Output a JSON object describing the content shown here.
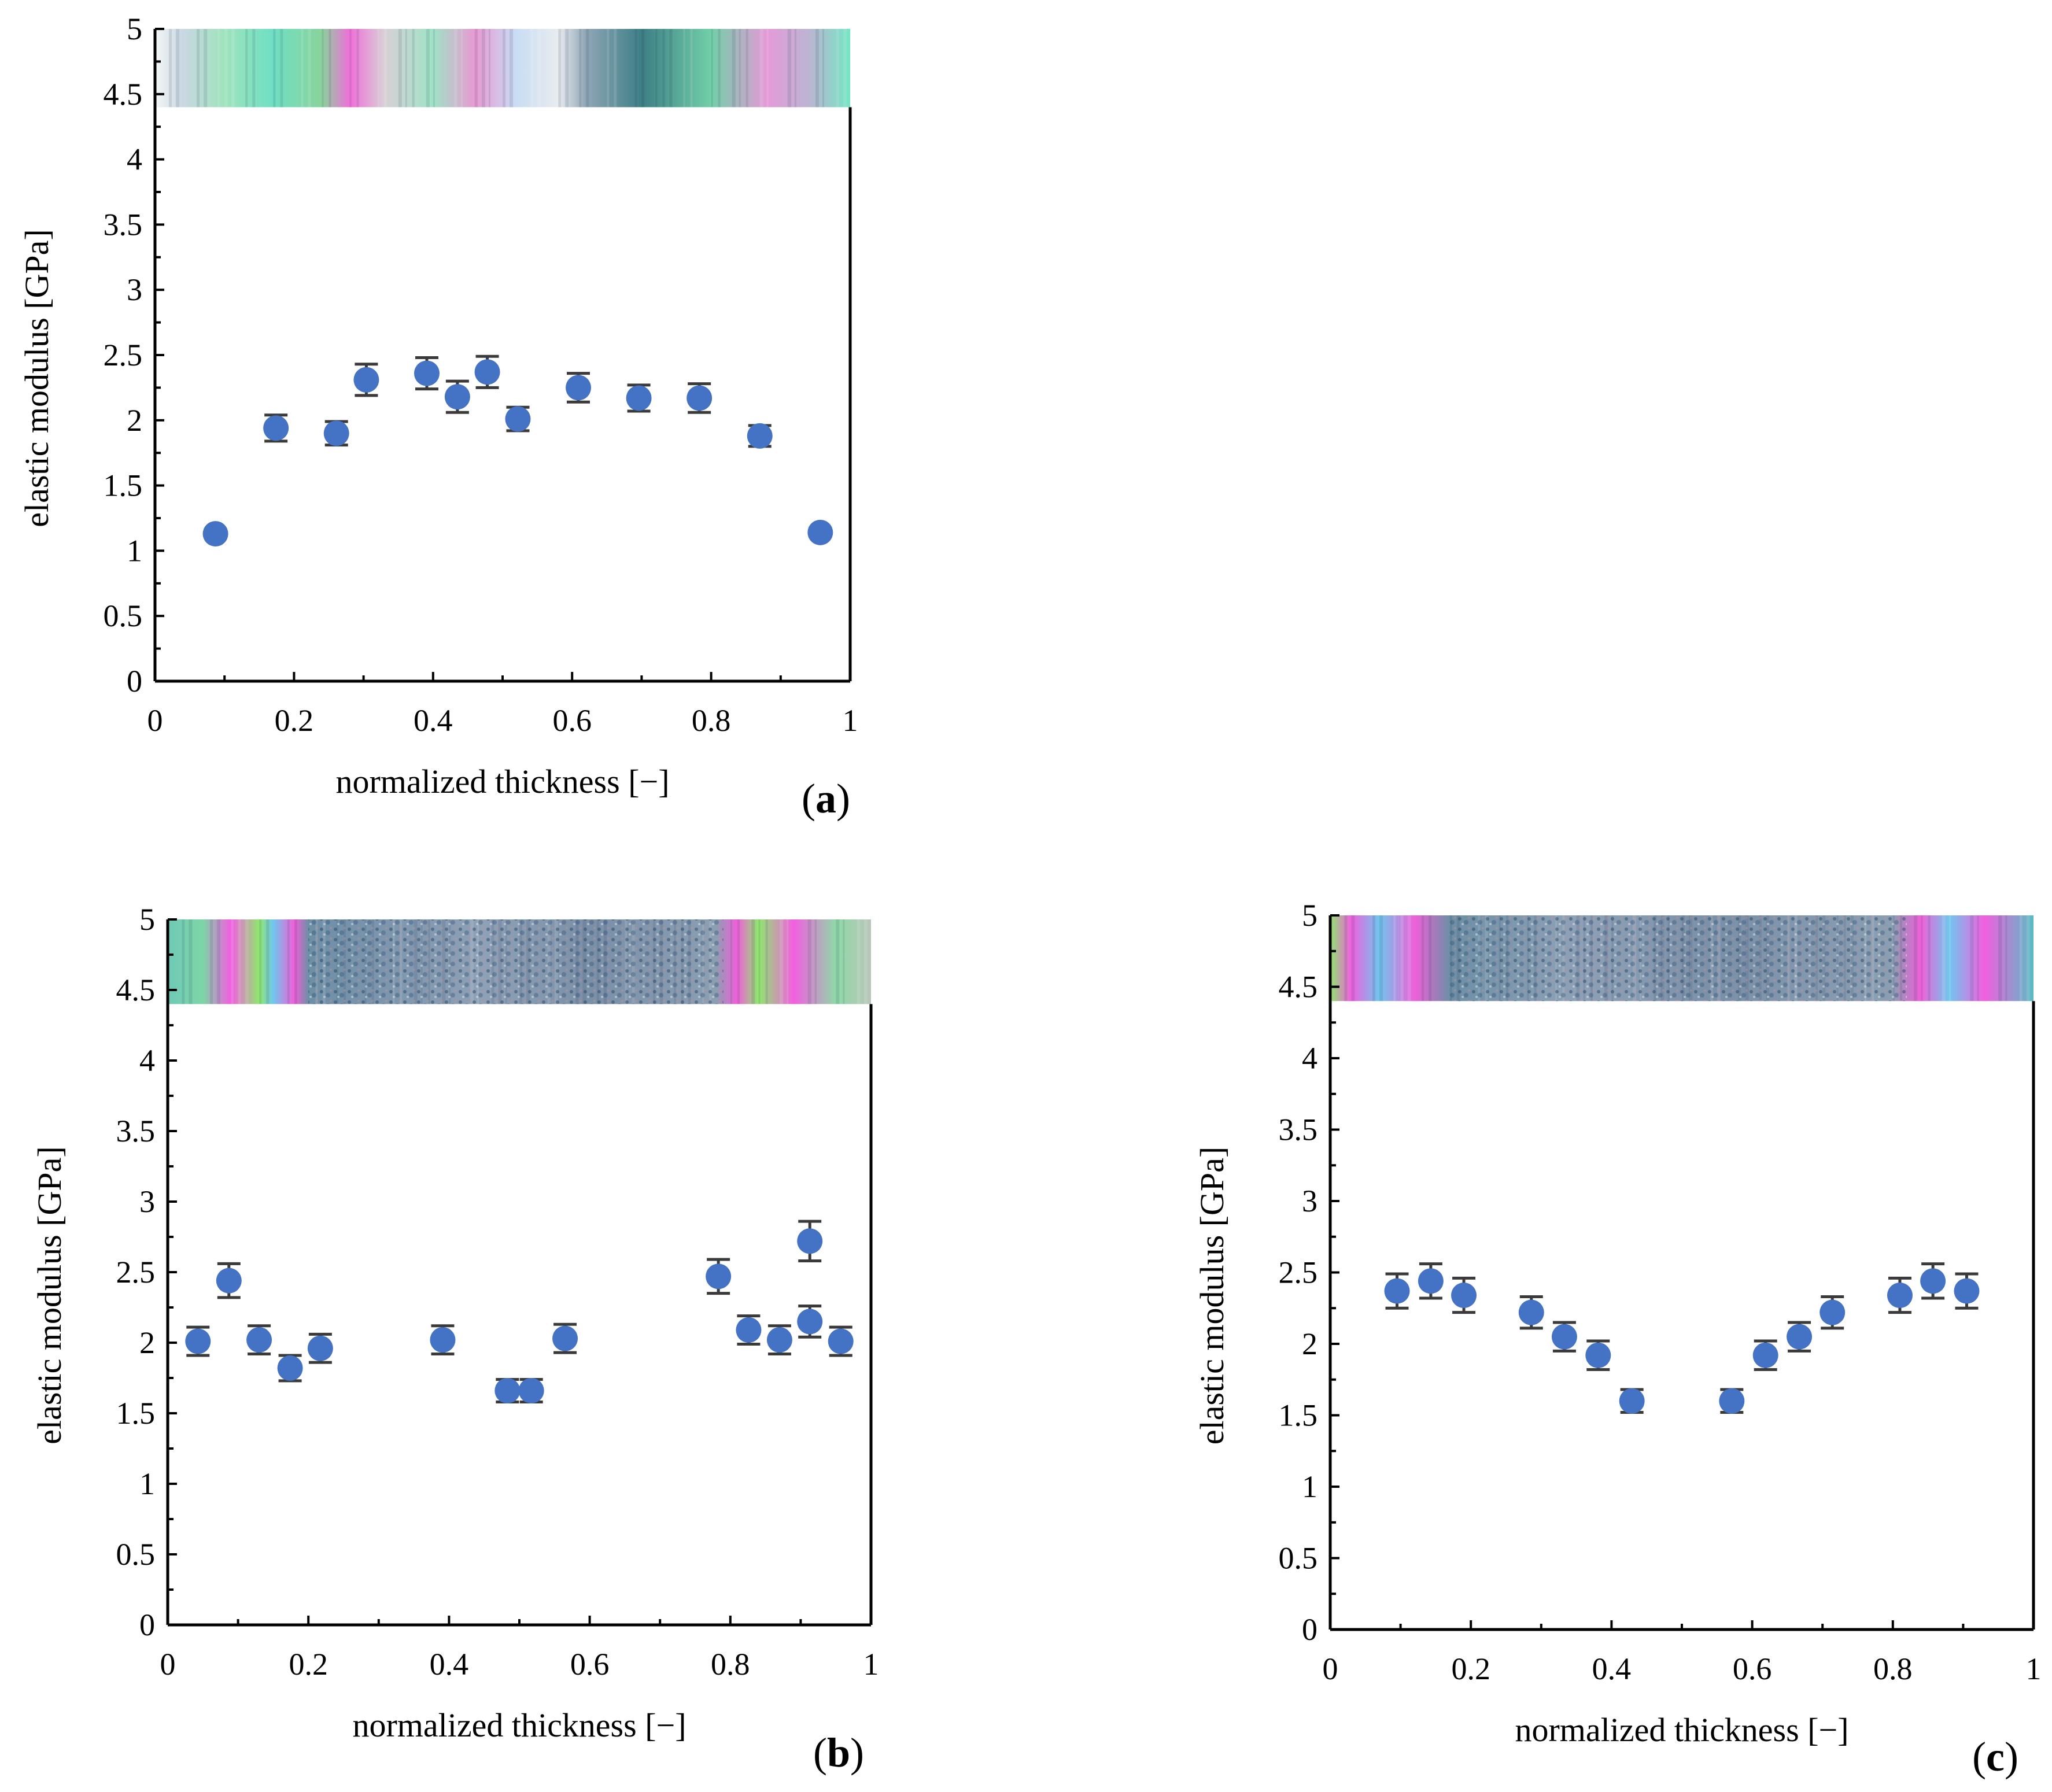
{
  "colors": {
    "marker": "#4472C4",
    "axis": "#000000",
    "errorbar": "#3a3a3a"
  },
  "chart_data": [
    {
      "id": "a",
      "type": "scatter",
      "panel_label": "a",
      "xlabel": "normalized thickness [−]",
      "ylabel": "elastic modulus [GPa]",
      "xlim": [
        0,
        1
      ],
      "ylim": [
        0,
        5
      ],
      "xticks": [
        "0",
        "0.2",
        "0.4",
        "0.6",
        "0.8",
        "1"
      ],
      "yticks": [
        "0",
        "0.5",
        "1",
        "1.5",
        "2",
        "2.5",
        "3",
        "3.5",
        "4",
        "4.5",
        "5"
      ],
      "grid": false,
      "legend": "none",
      "inset_image": "polarized-micrograph-strip",
      "x": [
        0.087,
        0.174,
        0.261,
        0.304,
        0.391,
        0.435,
        0.478,
        0.522,
        0.609,
        0.696,
        0.783,
        0.87,
        0.957
      ],
      "y": [
        1.13,
        1.94,
        1.9,
        2.31,
        2.36,
        2.18,
        2.37,
        2.01,
        2.25,
        2.17,
        2.17,
        1.88,
        1.14
      ],
      "error": [
        0.03,
        0.1,
        0.09,
        0.12,
        0.12,
        0.12,
        0.12,
        0.09,
        0.11,
        0.1,
        0.11,
        0.08,
        0.03
      ]
    },
    {
      "id": "b",
      "type": "scatter",
      "panel_label": "b",
      "xlabel": "normalized thickness [−]",
      "ylabel": "elastic modulus [GPa]",
      "xlim": [
        0,
        1
      ],
      "ylim": [
        0,
        5
      ],
      "xticks": [
        "0",
        "0.2",
        "0.4",
        "0.6",
        "0.8",
        "1"
      ],
      "yticks": [
        "0",
        "0.5",
        "1",
        "1.5",
        "2",
        "2.5",
        "3",
        "3.5",
        "4",
        "4.5",
        "5"
      ],
      "grid": false,
      "legend": "none",
      "inset_image": "polarized-micrograph-strip",
      "x": [
        0.043,
        0.087,
        0.13,
        0.174,
        0.217,
        0.391,
        0.483,
        0.517,
        0.565,
        0.783,
        0.826,
        0.87,
        0.913,
        0.913,
        0.957
      ],
      "y": [
        2.01,
        2.44,
        2.02,
        1.82,
        1.96,
        2.02,
        1.66,
        1.66,
        2.03,
        2.47,
        2.09,
        2.02,
        2.72,
        2.15,
        2.01
      ],
      "error": [
        0.1,
        0.12,
        0.1,
        0.09,
        0.1,
        0.1,
        0.08,
        0.08,
        0.1,
        0.12,
        0.1,
        0.1,
        0.14,
        0.11,
        0.1
      ]
    },
    {
      "id": "c",
      "type": "scatter",
      "panel_label": "c",
      "xlabel": "normalized thickness [−]",
      "ylabel": "elastic modulus [GPa]",
      "xlim": [
        0,
        1
      ],
      "ylim": [
        0,
        5
      ],
      "xticks": [
        "0",
        "0.2",
        "0.4",
        "0.6",
        "0.8",
        "1"
      ],
      "yticks": [
        "0",
        "0.5",
        "1",
        "1.5",
        "2",
        "2.5",
        "3",
        "3.5",
        "4",
        "4.5",
        "5"
      ],
      "grid": false,
      "legend": "none",
      "inset_image": "polarized-micrograph-strip",
      "x": [
        0.095,
        0.143,
        0.19,
        0.286,
        0.333,
        0.381,
        0.429,
        0.571,
        0.619,
        0.667,
        0.714,
        0.81,
        0.857,
        0.905
      ],
      "y": [
        2.37,
        2.44,
        2.34,
        2.22,
        2.05,
        1.92,
        1.6,
        1.6,
        1.92,
        2.05,
        2.22,
        2.34,
        2.44,
        2.37
      ],
      "error": [
        0.12,
        0.12,
        0.12,
        0.11,
        0.1,
        0.1,
        0.08,
        0.08,
        0.1,
        0.1,
        0.11,
        0.12,
        0.12,
        0.12
      ]
    }
  ]
}
